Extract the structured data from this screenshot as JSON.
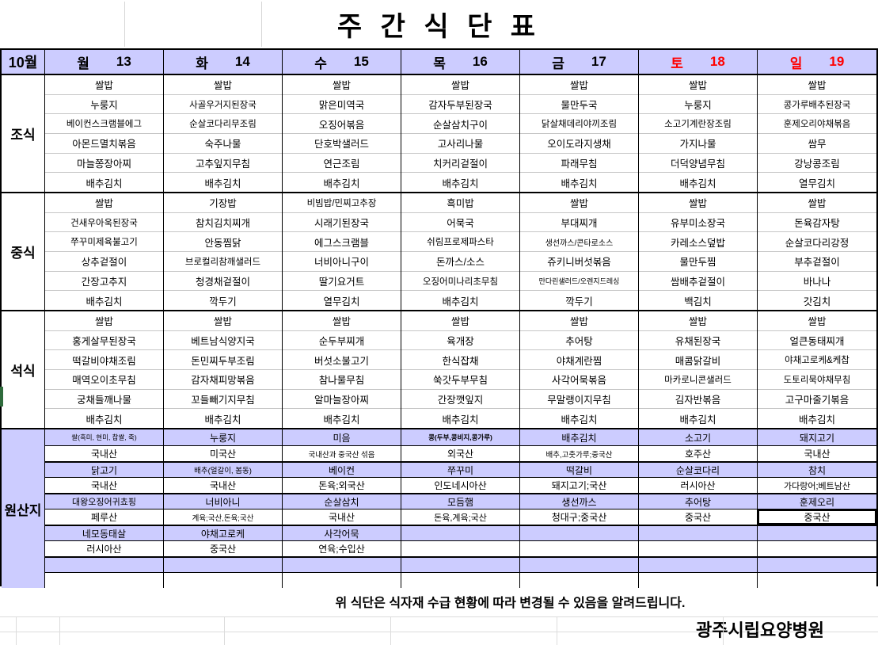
{
  "title": "주 간 식 단 표",
  "colors": {
    "lavender": "#ccccff",
    "weekend_red": "#ff0000",
    "grid_light": "#c6c6c6"
  },
  "header": {
    "month": "10월",
    "days": [
      {
        "name": "월",
        "date": "13",
        "red": false
      },
      {
        "name": "화",
        "date": "14",
        "red": false
      },
      {
        "name": "수",
        "date": "15",
        "red": false
      },
      {
        "name": "목",
        "date": "16",
        "red": false
      },
      {
        "name": "금",
        "date": "17",
        "red": false
      },
      {
        "name": "토",
        "date": "18",
        "red": true
      },
      {
        "name": "일",
        "date": "19",
        "red": true
      }
    ]
  },
  "sections": [
    {
      "label": "조식",
      "columns": [
        [
          "쌀밥",
          "누룽지",
          "베이컨스크램블에그",
          "아몬드멸치볶음",
          "마늘쫑장아찌",
          "배추김치"
        ],
        [
          "쌀밥",
          "사골우거지된장국",
          "순살코다리무조림",
          "숙주나물",
          "고추잎지무침",
          "배추김치"
        ],
        [
          "쌀밥",
          "맑은미역국",
          "오징어볶음",
          "단호박샐러드",
          "연근조림",
          "배추김치"
        ],
        [
          "쌀밥",
          "감자두부된장국",
          "순살삼치구이",
          "고사리나물",
          "치커리겉절이",
          "배추김치"
        ],
        [
          "쌀밥",
          "물만두국",
          "닭살채데리야끼조림",
          "오이도라지생채",
          "파래무침",
          "배추김치"
        ],
        [
          "쌀밥",
          "누룽지",
          "소고기계란장조림",
          "가지나물",
          "더덕양념무침",
          "배추김치"
        ],
        [
          "쌀밥",
          "콩가루배추된장국",
          "훈제오리야채볶음",
          "쌈무",
          "강낭콩조림",
          "열무김치"
        ]
      ]
    },
    {
      "label": "중식",
      "columns": [
        [
          "쌀밥",
          "건새우아욱된장국",
          "쭈꾸미제육불고기",
          "상추겉절이",
          "간장고추지",
          "배추김치"
        ],
        [
          "기장밥",
          "참치김치찌개",
          "안동찜닭",
          "브로컬리참깨샐러드",
          "청경채겉절이",
          "깍두기"
        ],
        [
          "비빔밥/민찌고추장",
          "시래기된장국",
          "에그스크램블",
          "너비아니구이",
          "딸기요거트",
          "열무김치"
        ],
        [
          "흑미밥",
          "어묵국",
          "쉬림프로제파스타",
          "돈까스/소스",
          "오징어미나리초무침",
          "배추김치"
        ],
        [
          "쌀밥",
          "부대찌개",
          "생선까스/콘타로소스",
          "쥬키니버섯볶음",
          "만다린샐러드/오렌지드레싱",
          "깍두기"
        ],
        [
          "쌀밥",
          "유부미소장국",
          "카레소스덮밥",
          "물만두찜",
          "쌈배추겉절이",
          "백김치"
        ],
        [
          "쌀밥",
          "돈육감자탕",
          "순살코다리강정",
          "부추겉절이",
          "바나나",
          "갓김치"
        ]
      ]
    },
    {
      "label": "석식",
      "columns": [
        [
          "쌀밥",
          "홍게살무된장국",
          "떡갈비야채조림",
          "매역오이초무침",
          "궁채들깨나물",
          "배추김치"
        ],
        [
          "쌀밥",
          "베트남식양지국",
          "돈민찌두부조림",
          "감자채피망볶음",
          "꼬들빼기지무침",
          "배추김치"
        ],
        [
          "쌀밥",
          "순두부찌개",
          "버섯소불고기",
          "참나물무침",
          "알마늘장아찌",
          "배추김치"
        ],
        [
          "쌀밥",
          "육개장",
          "한식잡채",
          "쑥갓두부무침",
          "간장깻잎지",
          "배추김치"
        ],
        [
          "쌀밥",
          "추어탕",
          "야채계란찜",
          "사각어묵볶음",
          "무말랭이지무침",
          "배추김치"
        ],
        [
          "쌀밥",
          "유채된장국",
          "매콤닭갈비",
          "마카로니콘샐러드",
          "김자반볶음",
          "배추김치"
        ],
        [
          "쌀밥",
          "얼큰동태찌개",
          "야채고로케&케찹",
          "도토리묵야채무침",
          "고구마줄기볶음",
          "배추김치"
        ]
      ]
    }
  ],
  "origin": {
    "label": "원산지",
    "columns": [
      [
        "쌀(흑미, 현미, 찹쌀, 죽)",
        "국내산",
        "닭고기",
        "국내산",
        "대왕오징어귀쵸핑",
        "페루산",
        "네모동태살",
        "러시아산",
        "",
        ""
      ],
      [
        "누룽지",
        "미국산",
        "배추(얼갈이, 봄동)",
        "국내산",
        "너비아니",
        "계육;국산,돈육;국산",
        "야채고로케",
        "중국산",
        "",
        ""
      ],
      [
        "미음",
        "국내산과 중국산 섞음",
        "베이컨",
        "돈육;외국산",
        "순살삼치",
        "국내산",
        "사각어묵",
        "연육;수입산",
        "",
        ""
      ],
      [
        "콩(두부,콩비지,콩가루)",
        "외국산",
        "쭈꾸미",
        "인도네시아산",
        "모듬햄",
        "돈육,계육;국산",
        "",
        "",
        "",
        ""
      ],
      [
        "배추김치",
        "배추,고춧가루;중국산",
        "떡갈비",
        "돼지고기;국산",
        "생선까스",
        "청대구;중국산",
        "",
        "",
        "",
        ""
      ],
      [
        "소고기",
        "호주산",
        "순살코다리",
        "러시아산",
        "추어탕",
        "중국산",
        "",
        "",
        "",
        ""
      ],
      [
        "돼지고기",
        "국내산",
        "참치",
        "가다랑어;베트남산",
        "훈제오리",
        "중국산",
        "",
        "",
        "",
        ""
      ]
    ],
    "bold_cell": {
      "col": 3,
      "row": 0
    },
    "selected_cell": {
      "col": 6,
      "row": 5
    }
  },
  "footer": {
    "notice": "위 식단은 식자재 수급 현황에 따라 변경될 수 있음을 알려드립니다.",
    "hospital": "광주시립요양병원"
  }
}
